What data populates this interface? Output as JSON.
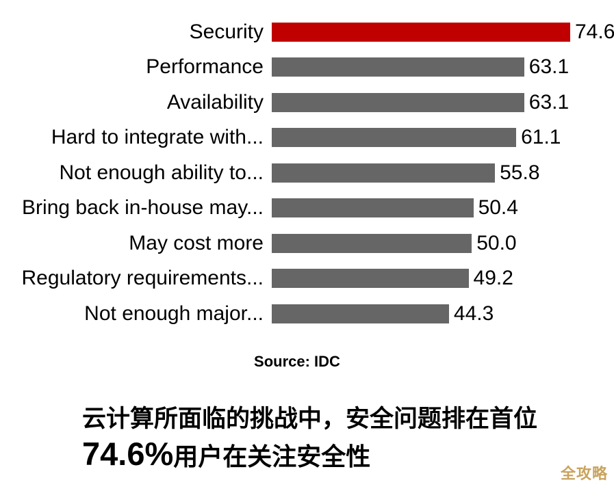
{
  "chart_data": {
    "type": "bar",
    "orientation": "horizontal",
    "title": "",
    "xlabel": "",
    "ylabel": "",
    "xlim": [
      0,
      74.6
    ],
    "grid": false,
    "legend": null,
    "categories": [
      "Security",
      "Performance",
      "Availability",
      "Hard to integrate with...",
      "Not enough ability to...",
      "Bring back in-house may...",
      "May cost more",
      "Regulatory requirements...",
      "Not enough major..."
    ],
    "values": [
      74.6,
      63.1,
      63.1,
      61.1,
      55.8,
      50.4,
      50.0,
      49.2,
      44.3
    ],
    "value_labels": [
      "74.6",
      "63.1",
      "63.1",
      "61.1",
      "55.8",
      "50.4",
      "50.0",
      "49.2",
      "44.3"
    ],
    "highlight_index": 0,
    "colors": {
      "highlight": "#c00000",
      "default": "#666666"
    },
    "source": "Source: IDC"
  },
  "caption": {
    "line1": "云计算所面临的挑战中，安全问题排在首位",
    "line2_highlight": "74.6%",
    "line2_rest": "用户在关注安全性"
  },
  "watermark": {
    "text": "全攻略",
    "color": "#c9a35c"
  }
}
